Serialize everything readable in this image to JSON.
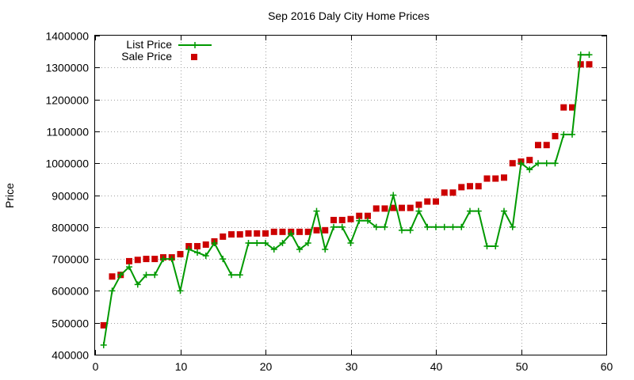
{
  "chart_data": {
    "type": "line",
    "title": "Sep 2016 Daly City Home Prices",
    "xlabel": "",
    "ylabel": "Price",
    "xlim": [
      0,
      60
    ],
    "ylim": [
      400000,
      1400000
    ],
    "xticks": [
      0,
      10,
      20,
      30,
      40,
      50,
      60
    ],
    "yticks": [
      400000,
      500000,
      600000,
      700000,
      800000,
      900000,
      1000000,
      1100000,
      1200000,
      1300000,
      1400000
    ],
    "grid": true,
    "legend_position": "top-left",
    "x": [
      1,
      2,
      3,
      4,
      5,
      6,
      7,
      8,
      9,
      10,
      11,
      12,
      13,
      14,
      15,
      16,
      17,
      18,
      19,
      20,
      21,
      22,
      23,
      24,
      25,
      26,
      27,
      28,
      29,
      30,
      31,
      32,
      33,
      34,
      35,
      36,
      37,
      38,
      39,
      40,
      41,
      42,
      43,
      44,
      45,
      46,
      47,
      48,
      49,
      50,
      51,
      52,
      53,
      54,
      55,
      56,
      57,
      58
    ],
    "series": [
      {
        "name": "List Price",
        "style": "line-plus",
        "color": "#009900",
        "values": [
          430000,
          600000,
          650000,
          675000,
          620000,
          650000,
          650000,
          700000,
          700000,
          600000,
          730000,
          720000,
          710000,
          750000,
          700000,
          650000,
          650000,
          750000,
          750000,
          750000,
          730000,
          750000,
          780000,
          730000,
          750000,
          850000,
          730000,
          800000,
          800000,
          750000,
          820000,
          820000,
          800000,
          800000,
          900000,
          790000,
          790000,
          850000,
          800000,
          800000,
          800000,
          800000,
          800000,
          850000,
          850000,
          740000,
          740000,
          850000,
          800000,
          1000000,
          980000,
          1000000,
          1000000,
          1000000,
          1090000,
          1090000,
          1340000,
          1340000
        ]
      },
      {
        "name": "Sale Price",
        "style": "square",
        "color": "#cc0000",
        "values": [
          492000,
          645000,
          650000,
          693000,
          697000,
          700000,
          700000,
          705000,
          705000,
          715000,
          740000,
          740000,
          745000,
          755000,
          770000,
          777000,
          777000,
          780000,
          780000,
          780000,
          785000,
          785000,
          785000,
          785000,
          785000,
          790000,
          790000,
          822000,
          822000,
          825000,
          835000,
          835000,
          858000,
          858000,
          860000,
          860000,
          860000,
          870000,
          880000,
          880000,
          908000,
          908000,
          925000,
          928000,
          928000,
          952000,
          952000,
          955000,
          1000000,
          1005000,
          1010000,
          1057000,
          1057000,
          1085000,
          1175000,
          1175000,
          1310000,
          1310000
        ]
      }
    ]
  }
}
